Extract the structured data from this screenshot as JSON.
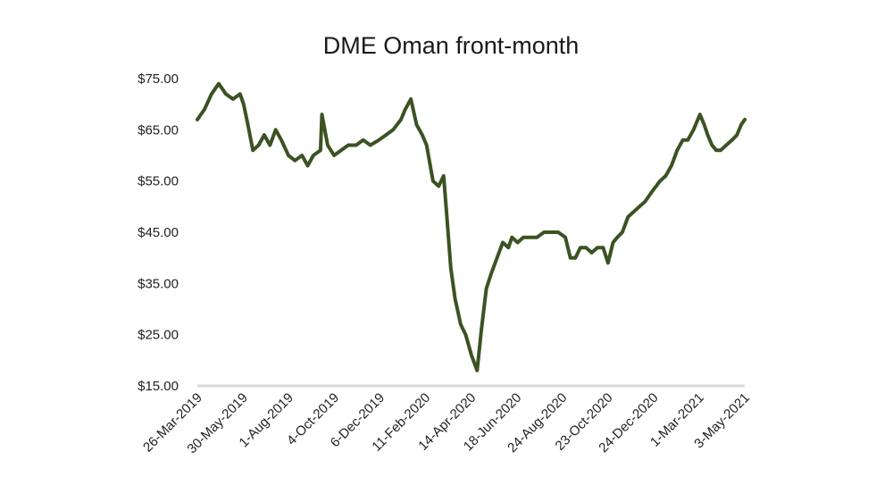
{
  "chart_data": {
    "type": "line",
    "title": "DME Oman front-month",
    "xlabel": "",
    "ylabel": "",
    "ylim": [
      15,
      75
    ],
    "y_ticks": [
      "$15.00",
      "$25.00",
      "$35.00",
      "$45.00",
      "$55.00",
      "$65.00",
      "$75.00"
    ],
    "y_tick_values": [
      15,
      25,
      35,
      45,
      55,
      65,
      75
    ],
    "x_ticks": [
      "26-Mar-2019",
      "30-May-2019",
      "1-Aug-2019",
      "4-Oct-2019",
      "6-Dec-2019",
      "11-Feb-2020",
      "14-Apr-2020",
      "18-Jun-2020",
      "24-Aug-2020",
      "23-Oct-2020",
      "24-Dec-2020",
      "1-Mar-2021",
      "3-May-2021"
    ],
    "grid": false,
    "legend": "none",
    "series": [
      {
        "color": "#3b5323",
        "x": [
          "2019-03-26",
          "2019-04-05",
          "2019-04-15",
          "2019-04-25",
          "2019-05-05",
          "2019-05-15",
          "2019-05-25",
          "2019-05-30",
          "2019-06-05",
          "2019-06-12",
          "2019-06-20",
          "2019-06-28",
          "2019-07-06",
          "2019-07-14",
          "2019-07-22",
          "2019-08-01",
          "2019-08-10",
          "2019-08-20",
          "2019-08-28",
          "2019-09-05",
          "2019-09-15",
          "2019-09-17",
          "2019-09-25",
          "2019-10-04",
          "2019-10-14",
          "2019-10-24",
          "2019-11-04",
          "2019-11-14",
          "2019-11-24",
          "2019-12-06",
          "2019-12-16",
          "2019-12-26",
          "2020-01-06",
          "2020-01-12",
          "2020-01-20",
          "2020-01-28",
          "2020-02-05",
          "2020-02-11",
          "2020-02-20",
          "2020-02-28",
          "2020-03-06",
          "2020-03-10",
          "2020-03-16",
          "2020-03-22",
          "2020-03-30",
          "2020-04-06",
          "2020-04-14",
          "2020-04-22",
          "2020-04-28",
          "2020-05-05",
          "2020-05-12",
          "2020-05-20",
          "2020-05-28",
          "2020-06-05",
          "2020-06-10",
          "2020-06-18",
          "2020-06-26",
          "2020-07-05",
          "2020-07-15",
          "2020-07-25",
          "2020-08-04",
          "2020-08-14",
          "2020-08-24",
          "2020-08-31",
          "2020-09-07",
          "2020-09-14",
          "2020-09-22",
          "2020-09-30",
          "2020-10-08",
          "2020-10-16",
          "2020-10-23",
          "2020-10-30",
          "2020-11-05",
          "2020-11-12",
          "2020-11-20",
          "2020-11-28",
          "2020-12-06",
          "2020-12-14",
          "2020-12-24",
          "2021-01-04",
          "2021-01-12",
          "2021-01-20",
          "2021-01-28",
          "2021-02-05",
          "2021-02-12",
          "2021-02-20",
          "2021-03-01",
          "2021-03-07",
          "2021-03-12",
          "2021-03-18",
          "2021-03-24",
          "2021-03-30",
          "2021-04-07",
          "2021-04-15",
          "2021-04-22",
          "2021-04-28",
          "2021-05-03"
        ],
        "values": [
          67,
          69,
          72,
          74,
          72,
          71,
          72,
          70,
          66,
          61,
          62,
          64,
          62,
          65,
          63,
          60,
          59,
          60,
          58,
          60,
          61,
          68,
          62,
          60,
          61,
          62,
          62,
          63,
          62,
          63,
          64,
          65,
          67,
          69,
          71,
          66,
          64,
          62,
          55,
          54,
          56,
          49,
          38,
          32,
          27,
          25,
          21,
          18,
          26,
          34,
          37,
          40,
          43,
          42,
          44,
          43,
          44,
          44,
          44,
          45,
          45,
          45,
          44,
          40,
          40,
          42,
          42,
          41,
          42,
          42,
          39,
          43,
          44,
          45,
          48,
          49,
          50,
          51,
          53,
          55,
          56,
          58,
          61,
          63,
          63,
          65,
          68,
          66,
          64,
          62,
          61,
          61,
          62,
          63,
          64,
          66,
          67
        ]
      }
    ]
  }
}
